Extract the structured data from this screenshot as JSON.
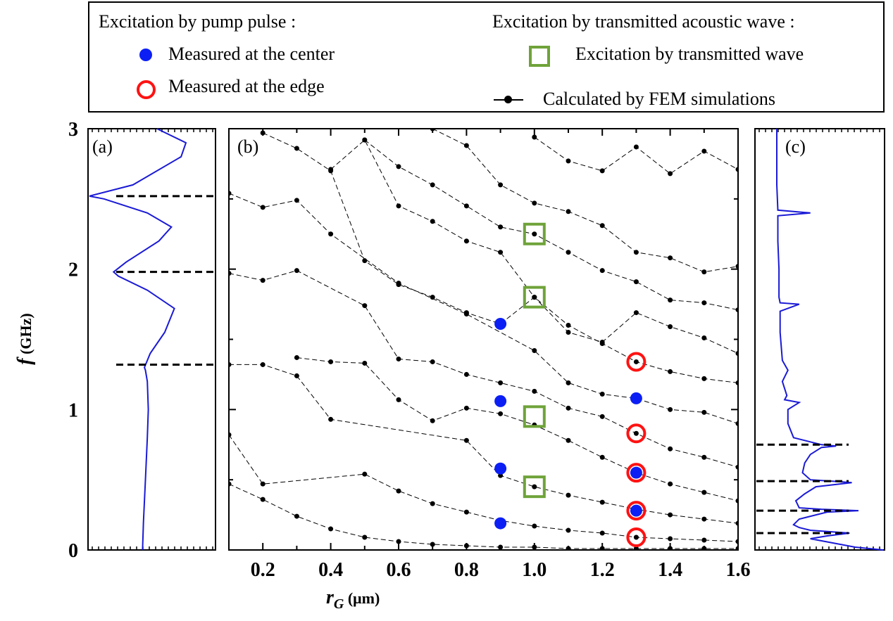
{
  "legend": {
    "left_title": "Excitation by pump pulse :",
    "center_label": "Measured at the center",
    "edge_label": "Measured at the edge",
    "right_title": "Excitation by transmitted acoustic wave :",
    "transmitted_label": "Excitation by transmitted wave",
    "fem_label": "Calculated by FEM simulations"
  },
  "colors": {
    "center": "#0b1ff5",
    "edge": "#ff1212",
    "transmitted": "#6fa33a",
    "fem": "#000000",
    "spectrum": "#1a1ad6"
  },
  "chart_data": [
    {
      "type": "line",
      "panel": "(a)",
      "ylabel_italic": "f",
      "ylabel_rest": " (GHz)",
      "ylim": [
        0,
        3
      ],
      "yticks": [
        "0",
        "1",
        "2",
        "3"
      ],
      "x_scale": "arbitrary units (not labeled)",
      "spectrum_f": [
        0,
        0.2,
        0.5,
        0.8,
        1.0,
        1.2,
        1.28,
        1.3,
        1.4,
        1.55,
        1.72,
        1.85,
        1.95,
        1.98,
        2.05,
        2.2,
        2.3,
        2.4,
        2.5,
        2.52,
        2.6,
        2.8,
        2.9,
        3.0
      ],
      "spectrum_amplitude": [
        0.55,
        0.56,
        0.58,
        0.6,
        0.61,
        0.6,
        0.58,
        0.57,
        0.63,
        0.78,
        0.88,
        0.6,
        0.3,
        0.25,
        0.38,
        0.72,
        0.85,
        0.6,
        0.15,
        0.0,
        0.45,
        0.95,
        1.0,
        0.7
      ],
      "dashed_lines_f": [
        1.32,
        1.98,
        2.52
      ]
    },
    {
      "type": "scatter",
      "panel": "(b)",
      "xlabel_italic": "r",
      "xlabel_sub": "G",
      "xlabel_rest": " (μm)",
      "xlim": [
        0.1,
        1.6
      ],
      "ylim": [
        0,
        3
      ],
      "xticks": [
        "0.2",
        "0.4",
        "0.6",
        "0.8",
        "1.0",
        "1.2",
        "1.4",
        "1.6"
      ],
      "series": [
        {
          "name": "Measured at the center",
          "marker": "filled-circle",
          "x": [
            0.9,
            0.9,
            0.9,
            0.9,
            1.3,
            1.3,
            1.3
          ],
          "y": [
            1.61,
            1.06,
            0.58,
            0.19,
            1.08,
            0.55,
            0.28
          ]
        },
        {
          "name": "Measured at the edge",
          "marker": "open-circle",
          "x": [
            1.3,
            1.3,
            1.3,
            1.3,
            1.3
          ],
          "y": [
            1.34,
            0.83,
            0.55,
            0.28,
            0.09
          ]
        },
        {
          "name": "Excitation by transmitted wave",
          "marker": "open-square",
          "x": [
            1.0,
            1.0,
            1.0,
            1.0
          ],
          "y": [
            2.25,
            1.8,
            0.95,
            0.45
          ]
        }
      ],
      "fem_branches": [
        {
          "x": [
            0.1,
            0.2,
            0.3,
            0.4,
            0.5,
            0.6,
            0.7,
            0.8,
            0.9,
            1.0,
            1.1,
            1.2,
            1.3,
            1.4,
            1.5,
            1.6
          ],
          "y": [
            0.47,
            0.36,
            0.24,
            0.15,
            0.09,
            0.06,
            0.04,
            0.03,
            0.02,
            0.02,
            0.01,
            0.01,
            0.01,
            0.01,
            0.01,
            0.01
          ]
        },
        {
          "x": [
            0.1,
            0.2,
            0.5,
            0.6,
            0.7,
            0.8,
            0.9,
            1.0,
            1.1,
            1.2,
            1.3,
            1.4,
            1.5,
            1.6
          ],
          "y": [
            0.82,
            0.47,
            0.54,
            0.42,
            0.33,
            0.27,
            0.21,
            0.17,
            0.14,
            0.12,
            0.09,
            0.08,
            0.07,
            0.06
          ]
        },
        {
          "x": [
            0.1,
            0.2,
            0.3,
            0.4,
            0.8,
            0.9,
            1.0,
            1.1,
            1.2,
            1.3,
            1.4,
            1.5,
            1.6
          ],
          "y": [
            1.32,
            1.32,
            1.24,
            0.93,
            0.78,
            0.53,
            0.45,
            0.39,
            0.34,
            0.29,
            0.25,
            0.22,
            0.19
          ]
        },
        {
          "x": [
            0.3,
            0.4,
            0.5,
            0.6,
            0.7,
            0.8,
            0.9,
            1.0,
            1.1,
            1.2,
            1.3,
            1.4,
            1.5,
            1.6
          ],
          "y": [
            1.37,
            1.34,
            1.33,
            1.07,
            0.92,
            1.01,
            0.97,
            0.89,
            0.78,
            0.66,
            0.55,
            0.47,
            0.41,
            0.35
          ]
        },
        {
          "x": [
            0.1,
            0.2,
            0.3,
            0.5,
            0.6,
            0.7,
            0.8,
            0.9,
            1.0,
            1.1,
            1.2,
            1.3,
            1.4,
            1.5,
            1.6
          ],
          "y": [
            1.97,
            1.92,
            1.99,
            1.74,
            1.36,
            1.34,
            1.25,
            1.19,
            1.13,
            1.01,
            0.95,
            0.83,
            0.72,
            0.66,
            0.59
          ]
        },
        {
          "x": [
            0.1,
            0.2,
            0.3,
            0.4,
            0.6,
            0.8,
            1.0,
            1.1,
            1.2,
            1.3,
            1.4,
            1.5,
            1.6
          ],
          "y": [
            2.54,
            2.44,
            2.49,
            2.25,
            1.9,
            1.68,
            1.42,
            1.19,
            1.11,
            1.08,
            1.0,
            0.98,
            0.9
          ]
        },
        {
          "x": [
            0.2,
            0.3,
            0.4,
            0.5,
            0.6,
            0.7,
            0.8,
            0.9,
            1.0,
            1.1,
            1.2,
            1.3,
            1.4,
            1.5,
            1.6
          ],
          "y": [
            2.97,
            2.86,
            2.7,
            2.06,
            1.89,
            1.8,
            1.69,
            1.61,
            1.8,
            1.6,
            1.47,
            1.34,
            1.27,
            1.22,
            1.19
          ]
        },
        {
          "x": [
            0.4,
            0.5,
            0.6,
            0.7,
            0.8,
            0.9,
            1.0,
            1.1,
            1.2,
            1.3,
            1.4,
            1.5,
            1.6
          ],
          "y": [
            2.71,
            2.92,
            2.45,
            2.34,
            2.2,
            2.12,
            1.8,
            1.55,
            1.48,
            1.69,
            1.59,
            1.51,
            1.4
          ]
        },
        {
          "x": [
            0.5,
            0.6,
            0.7,
            0.8,
            0.9,
            1.0,
            1.1,
            1.2,
            1.3,
            1.4,
            1.5,
            1.6
          ],
          "y": [
            2.92,
            2.73,
            2.6,
            2.45,
            2.3,
            2.25,
            2.12,
            1.99,
            1.91,
            1.78,
            1.76,
            1.71
          ]
        },
        {
          "x": [
            0.7,
            0.8,
            0.9,
            1.0,
            1.1,
            1.2,
            1.3,
            1.4,
            1.5,
            1.6
          ],
          "y": [
            3.0,
            2.88,
            2.6,
            2.47,
            2.41,
            2.31,
            2.12,
            2.08,
            1.98,
            2.02
          ]
        },
        {
          "x": [
            1.0,
            1.1,
            1.2,
            1.3,
            1.4,
            1.5,
            1.6
          ],
          "y": [
            2.94,
            2.77,
            2.7,
            2.87,
            2.68,
            2.84,
            2.71
          ]
        }
      ]
    },
    {
      "type": "line",
      "panel": "(c)",
      "ylim": [
        0,
        3
      ],
      "x_scale": "arbitrary units (not labeled)",
      "spectrum_f": [
        0,
        0.02,
        0.05,
        0.08,
        0.1,
        0.12,
        0.14,
        0.16,
        0.18,
        0.22,
        0.27,
        0.28,
        0.29,
        0.3,
        0.35,
        0.4,
        0.45,
        0.48,
        0.49,
        0.5,
        0.55,
        0.62,
        0.68,
        0.73,
        0.74,
        0.75,
        0.8,
        0.9,
        1.0,
        1.05,
        1.07,
        1.1,
        1.2,
        1.28,
        1.35,
        1.45,
        1.55,
        1.7,
        1.75,
        1.76,
        1.8,
        2.0,
        2.2,
        2.38,
        2.4,
        2.42,
        2.6,
        2.8,
        3.0
      ],
      "spectrum_amplitude": [
        1.0,
        0.75,
        0.55,
        0.35,
        0.5,
        0.7,
        0.35,
        0.25,
        0.2,
        0.25,
        0.5,
        0.78,
        0.45,
        0.25,
        0.22,
        0.3,
        0.4,
        0.72,
        0.55,
        0.35,
        0.28,
        0.3,
        0.35,
        0.45,
        0.58,
        0.45,
        0.2,
        0.15,
        0.15,
        0.25,
        0.12,
        0.14,
        0.1,
        0.15,
        0.1,
        0.09,
        0.08,
        0.08,
        0.25,
        0.08,
        0.07,
        0.07,
        0.06,
        0.06,
        0.35,
        0.06,
        0.05,
        0.05,
        0.05
      ],
      "dashed_lines_f": [
        0.12,
        0.28,
        0.49,
        0.75
      ]
    }
  ]
}
